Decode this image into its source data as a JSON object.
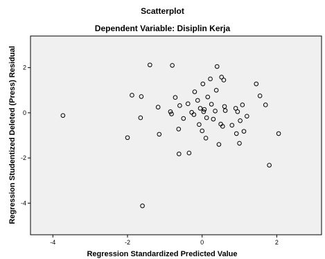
{
  "chart_data": {
    "type": "scatter",
    "title": "Scatterplot",
    "subtitle": "Dependent Variable: Disiplin Kerja",
    "xlabel": "Regression Standardized Predicted Value",
    "ylabel": "Regression Studentized Deleted (Press) Residual",
    "xlim": [
      -4.6,
      3.2
    ],
    "ylim": [
      -5.4,
      3.4
    ],
    "x_ticks": [
      -4,
      -2,
      0,
      2
    ],
    "y_ticks": [
      -4,
      -2,
      0,
      2
    ],
    "x_tick_labels": [
      "-4",
      "-2",
      "0",
      "2"
    ],
    "y_tick_labels": [
      "-4",
      "-2",
      "0",
      "2"
    ],
    "grid": false,
    "legend": "none",
    "colors": {
      "plot_background": "#f0f0f0",
      "marker": "#000000",
      "page_background": "#ffffff"
    },
    "points": [
      {
        "x": -3.73,
        "y": -0.12
      },
      {
        "x": -2.0,
        "y": -1.1
      },
      {
        "x": -1.88,
        "y": 0.78
      },
      {
        "x": -1.65,
        "y": -0.22
      },
      {
        "x": -1.63,
        "y": 0.72
      },
      {
        "x": -1.6,
        "y": -4.12
      },
      {
        "x": -1.4,
        "y": 2.12
      },
      {
        "x": -1.18,
        "y": 0.25
      },
      {
        "x": -1.15,
        "y": -0.95
      },
      {
        "x": -0.85,
        "y": 0.05
      },
      {
        "x": -0.82,
        "y": -0.05
      },
      {
        "x": -0.8,
        "y": 2.1
      },
      {
        "x": -0.72,
        "y": 0.68
      },
      {
        "x": -0.63,
        "y": -0.72
      },
      {
        "x": -0.62,
        "y": -1.82
      },
      {
        "x": -0.6,
        "y": 0.32
      },
      {
        "x": -0.5,
        "y": -0.25
      },
      {
        "x": -0.38,
        "y": 0.4
      },
      {
        "x": -0.35,
        "y": -1.78
      },
      {
        "x": -0.28,
        "y": 0.02
      },
      {
        "x": -0.22,
        "y": -0.08
      },
      {
        "x": -0.2,
        "y": 0.93
      },
      {
        "x": -0.12,
        "y": 0.55
      },
      {
        "x": -0.08,
        "y": -0.52
      },
      {
        "x": -0.05,
        "y": 0.2
      },
      {
        "x": 0.0,
        "y": -0.8
      },
      {
        "x": 0.02,
        "y": 1.28
      },
      {
        "x": 0.04,
        "y": 0.05
      },
      {
        "x": 0.06,
        "y": 0.15
      },
      {
        "x": 0.1,
        "y": -1.12
      },
      {
        "x": 0.12,
        "y": -0.22
      },
      {
        "x": 0.15,
        "y": 0.7
      },
      {
        "x": 0.25,
        "y": 0.38
      },
      {
        "x": 0.3,
        "y": -0.28
      },
      {
        "x": 0.35,
        "y": 0.08
      },
      {
        "x": 0.38,
        "y": 1.0
      },
      {
        "x": 0.4,
        "y": 2.05
      },
      {
        "x": 0.45,
        "y": -1.4
      },
      {
        "x": 0.5,
        "y": -0.5
      },
      {
        "x": 0.52,
        "y": 1.58
      },
      {
        "x": 0.55,
        "y": -0.6
      },
      {
        "x": 0.58,
        "y": 1.45
      },
      {
        "x": 0.6,
        "y": 0.28
      },
      {
        "x": 0.62,
        "y": 0.1
      },
      {
        "x": 0.22,
        "y": 1.5
      },
      {
        "x": 0.8,
        "y": -0.55
      },
      {
        "x": 0.9,
        "y": 0.2
      },
      {
        "x": 0.92,
        "y": -0.92
      },
      {
        "x": 0.95,
        "y": 0.05
      },
      {
        "x": 1.0,
        "y": -1.35
      },
      {
        "x": 1.02,
        "y": -0.35
      },
      {
        "x": 1.08,
        "y": 0.35
      },
      {
        "x": 1.12,
        "y": -0.82
      },
      {
        "x": 1.2,
        "y": -0.15
      },
      {
        "x": 1.45,
        "y": 1.28
      },
      {
        "x": 1.55,
        "y": 0.75
      },
      {
        "x": 1.7,
        "y": 0.35
      },
      {
        "x": 1.8,
        "y": -2.32
      },
      {
        "x": 2.05,
        "y": -0.92
      }
    ]
  }
}
